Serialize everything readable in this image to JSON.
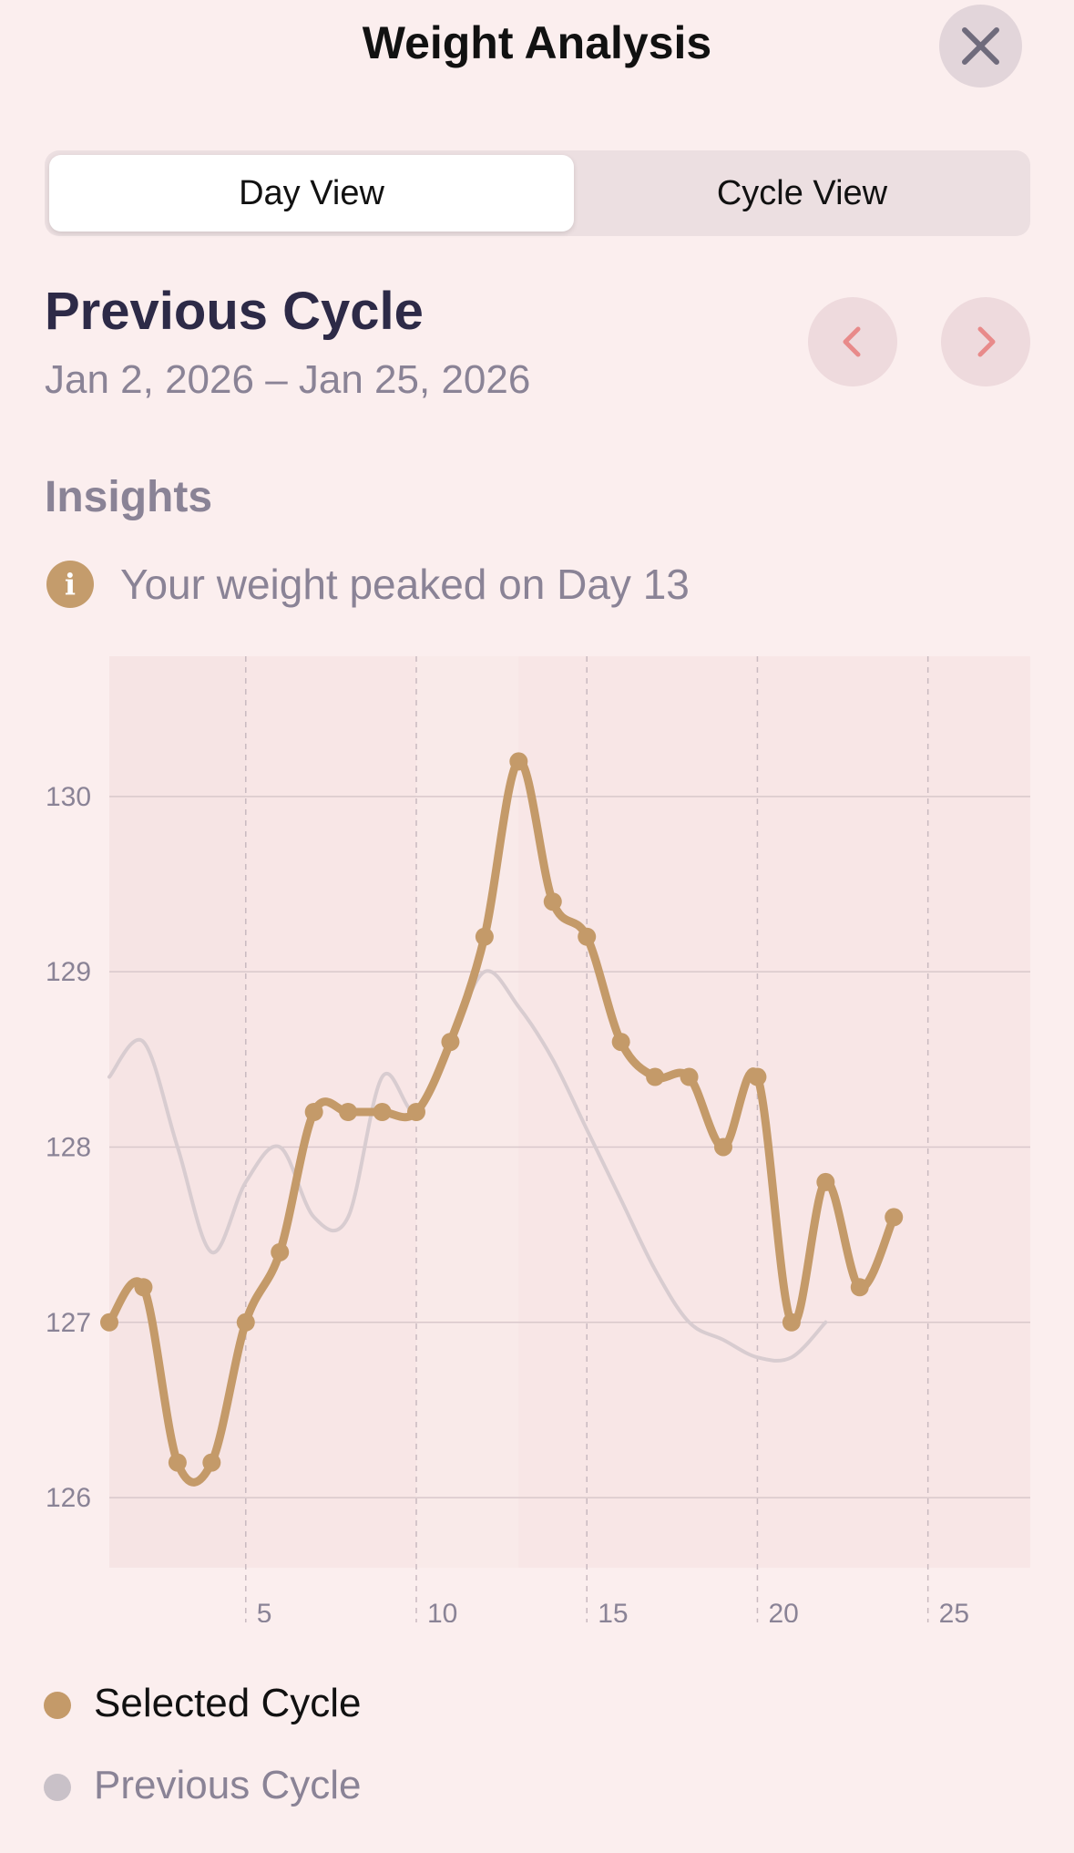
{
  "header": {
    "title": "Weight Analysis"
  },
  "segmented": {
    "day_view": "Day View",
    "cycle_view": "Cycle View",
    "selected": "Day View"
  },
  "cycle": {
    "title": "Previous Cycle",
    "range": "Jan 2, 2026 – Jan 25, 2026"
  },
  "insights": {
    "heading": "Insights",
    "text": "Your weight peaked on Day 13"
  },
  "colors": {
    "selected": "#c49a69",
    "previous": "#d8ccd0",
    "accent_nav": "#e88a8a",
    "background": "#fbeeee"
  },
  "legend": {
    "selected_label": "Selected Cycle",
    "previous_label": "Previous Cycle"
  },
  "chart_data": {
    "type": "line",
    "x_ticks": [
      5,
      10,
      15,
      20,
      25
    ],
    "y_ticks": [
      126,
      127,
      128,
      129,
      130
    ],
    "xlim": [
      1,
      28
    ],
    "ylim": [
      125.6,
      130.8
    ],
    "grid": true,
    "series": [
      {
        "name": "Selected Cycle",
        "x": [
          1,
          2,
          3,
          4,
          5,
          6,
          7,
          8,
          9,
          10,
          11,
          12,
          13,
          14,
          15,
          16,
          17,
          18,
          19,
          20,
          21,
          22,
          23,
          24
        ],
        "y": [
          127.0,
          127.2,
          126.2,
          126.2,
          127.0,
          127.4,
          128.2,
          128.2,
          128.2,
          128.2,
          128.6,
          129.2,
          130.2,
          129.4,
          129.2,
          128.6,
          128.4,
          128.4,
          128.0,
          128.4,
          127.0,
          127.8,
          127.2,
          127.6
        ]
      },
      {
        "name": "Previous Cycle",
        "x": [
          1,
          2,
          3,
          4,
          5,
          6,
          7,
          8,
          9,
          10,
          11,
          12,
          13,
          14,
          15,
          16,
          17,
          18,
          19,
          20,
          21,
          22
        ],
        "y": [
          128.4,
          128.6,
          128.0,
          127.4,
          127.8,
          128.0,
          127.6,
          127.6,
          128.4,
          128.2,
          128.6,
          129.0,
          128.8,
          128.5,
          128.1,
          127.7,
          127.3,
          127.0,
          126.9,
          126.8,
          126.8,
          127.0
        ]
      }
    ]
  }
}
